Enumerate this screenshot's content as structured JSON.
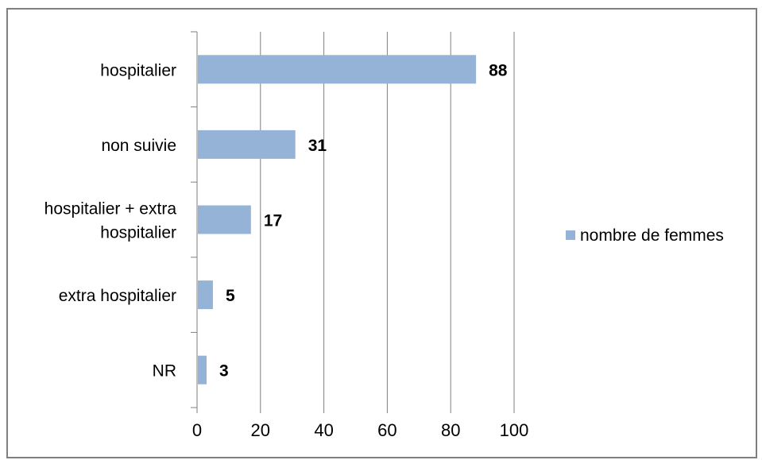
{
  "chart_data": {
    "type": "bar",
    "orientation": "horizontal",
    "categories": [
      "hospitalier",
      "non suivie",
      "hospitalier + extra hospitalier",
      "extra hospitalier",
      "NR"
    ],
    "series": [
      {
        "name": "nombre de femmes",
        "values": [
          88,
          31,
          17,
          5,
          3
        ]
      }
    ],
    "xlim": [
      0,
      100
    ],
    "xticks": [
      0,
      20,
      40,
      60,
      80,
      100
    ],
    "grid": true,
    "legend": "right",
    "data_labels": true
  },
  "colors": {
    "bar": "#95b3d7",
    "grid": "#7f7f7f",
    "frame": "#7f7f7f"
  }
}
